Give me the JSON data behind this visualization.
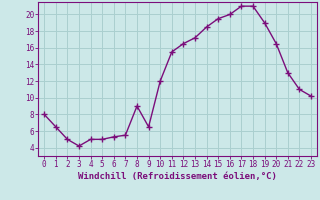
{
  "x": [
    0,
    1,
    2,
    3,
    4,
    5,
    6,
    7,
    8,
    9,
    10,
    11,
    12,
    13,
    14,
    15,
    16,
    17,
    18,
    19,
    20,
    21,
    22,
    23
  ],
  "y": [
    8.0,
    6.5,
    5.0,
    4.2,
    5.0,
    5.0,
    5.3,
    5.5,
    9.0,
    6.5,
    12.0,
    15.5,
    16.5,
    17.2,
    18.5,
    19.5,
    20.0,
    21.0,
    21.0,
    19.0,
    16.5,
    13.0,
    11.0,
    10.2
  ],
  "line_color": "#7b0e7b",
  "marker": "+",
  "marker_size": 4,
  "marker_edge_width": 1.0,
  "bg_color": "#cce8e8",
  "grid_color": "#aacfcf",
  "xlabel": "Windchill (Refroidissement éolien,°C)",
  "xlim": [
    -0.5,
    23.5
  ],
  "ylim": [
    3.0,
    21.5
  ],
  "yticks": [
    4,
    6,
    8,
    10,
    12,
    14,
    16,
    18,
    20
  ],
  "xticks": [
    0,
    1,
    2,
    3,
    4,
    5,
    6,
    7,
    8,
    9,
    10,
    11,
    12,
    13,
    14,
    15,
    16,
    17,
    18,
    19,
    20,
    21,
    22,
    23
  ],
  "tick_fontsize": 5.5,
  "xlabel_fontsize": 6.5,
  "axis_color": "#7b0e7b",
  "line_width": 1.0
}
